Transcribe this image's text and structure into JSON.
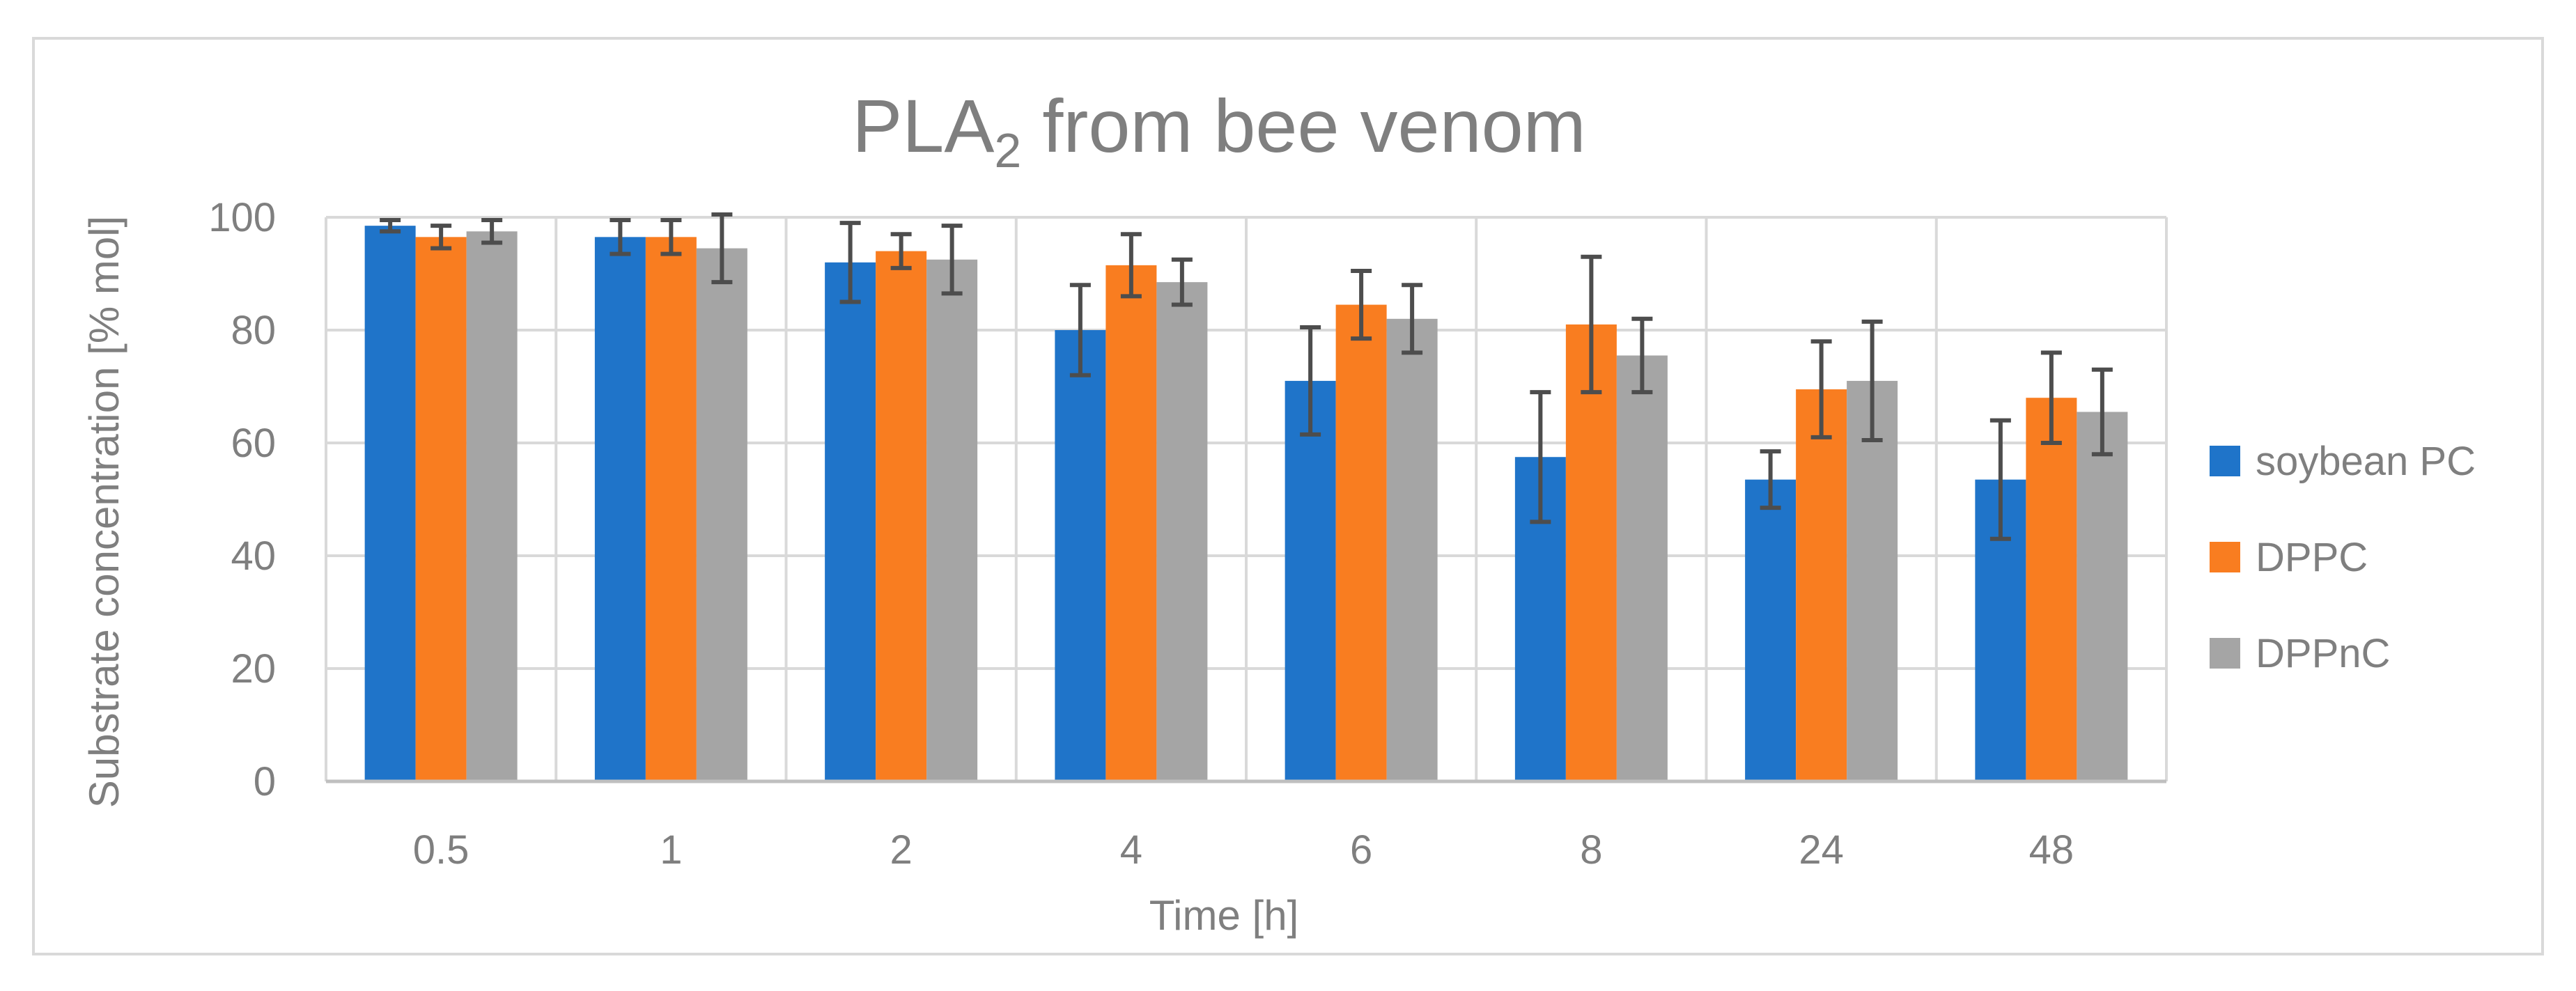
{
  "chart_data": {
    "type": "bar",
    "title": "PLA",
    "title_subscript": "2",
    "title_suffix": " from bee venom",
    "xlabel": "Time [h]",
    "ylabel": "Substrate concentration [% mol]",
    "ylim": [
      0,
      100
    ],
    "yticks": [
      0,
      20,
      40,
      60,
      80,
      100
    ],
    "grid": true,
    "legend_position": "right",
    "categories": [
      "0.5",
      "1",
      "2",
      "4",
      "6",
      "8",
      "24",
      "48"
    ],
    "series": [
      {
        "name": "soybean PC",
        "color": "#1f74c9",
        "values": [
          98.5,
          96.5,
          92,
          80,
          71,
          57.5,
          53.5,
          53.5
        ],
        "errors": [
          1,
          3,
          7,
          8,
          9.5,
          11.5,
          5,
          10.5
        ]
      },
      {
        "name": "DPPC",
        "color": "#f97d20",
        "values": [
          96.5,
          96.5,
          94,
          91.5,
          84.5,
          81,
          69.5,
          68
        ],
        "errors": [
          2,
          3,
          3,
          5.5,
          6,
          12,
          8.5,
          8
        ]
      },
      {
        "name": "DPPnC",
        "color": "#a5a5a5",
        "values": [
          97.5,
          94.5,
          92.5,
          88.5,
          82,
          75.5,
          71,
          65.5
        ],
        "errors": [
          2,
          6,
          6,
          4,
          6,
          6.5,
          10.5,
          7.5
        ]
      }
    ],
    "colors": {
      "axis_text": "#7f7f7f",
      "grid": "#d9d9d9",
      "error_bar": "#4d4d4d",
      "border": "#d9d9d9"
    }
  }
}
